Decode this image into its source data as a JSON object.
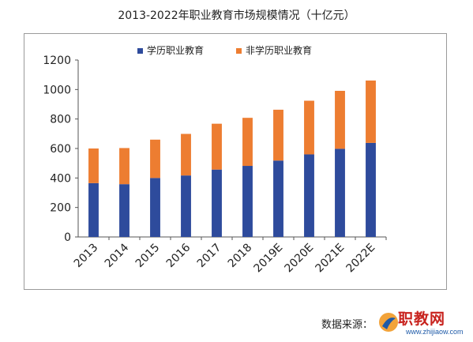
{
  "page_title": "2013-2022年职业教育市场规模情况（十亿元）",
  "source_label": "数据来源：",
  "logo": {
    "text": "职教网",
    "url": "www.zhijiaow.com"
  },
  "colors": {
    "series1": "#2e4b9c",
    "series2": "#ed7d31",
    "axis": "#555555"
  },
  "chart_data": {
    "type": "bar",
    "stacked": true,
    "categories": [
      "2013",
      "2014",
      "2015",
      "2016",
      "2017",
      "2018",
      "2019E",
      "2020E",
      "2021E",
      "2022E"
    ],
    "series": [
      {
        "name": "学历职业教育",
        "values": [
          365,
          358,
          400,
          417,
          457,
          482,
          518,
          560,
          598,
          638
        ]
      },
      {
        "name": "非学历职业教育",
        "values": [
          235,
          245,
          260,
          282,
          311,
          326,
          345,
          364,
          393,
          423
        ]
      }
    ],
    "ylim": [
      0,
      1200
    ],
    "yticks": [
      0,
      200,
      400,
      600,
      800,
      1000,
      1200
    ],
    "grid": false,
    "legend_position": "top"
  }
}
